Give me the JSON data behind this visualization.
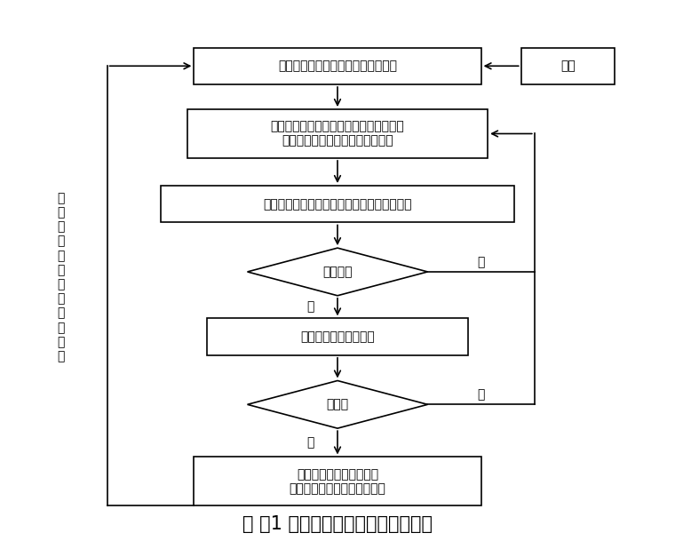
{
  "title": "・ 图1 单元工程质量检验工作程序图",
  "title_fontsize": 15,
  "background_color": "#ffffff",
  "box_facecolor": "#ffffff",
  "box_edgecolor": "#000000",
  "text_color": "#000000",
  "b1_text": "单元（工序）工程施工（处理）完毕",
  "b2_text": "施工单位进行自检，作好施工记录，填报\n单元（工序）工程施工质量评定表",
  "b3_text": "监理单位审核自检资料是否真实、可靠、完整",
  "b4_text": "审核结果",
  "b5_text": "监理单位现场抗样检验",
  "b6_text": "合格否",
  "b7_text": "监理单位审核、签认单元\n（工序）工程施工质量评定表",
  "bp_text": "处理",
  "left_text": "进\n入\n下\n一\n单\n元\n（\n工\n序\n）\n工\n程",
  "label_no": "否",
  "label_yes": "是"
}
